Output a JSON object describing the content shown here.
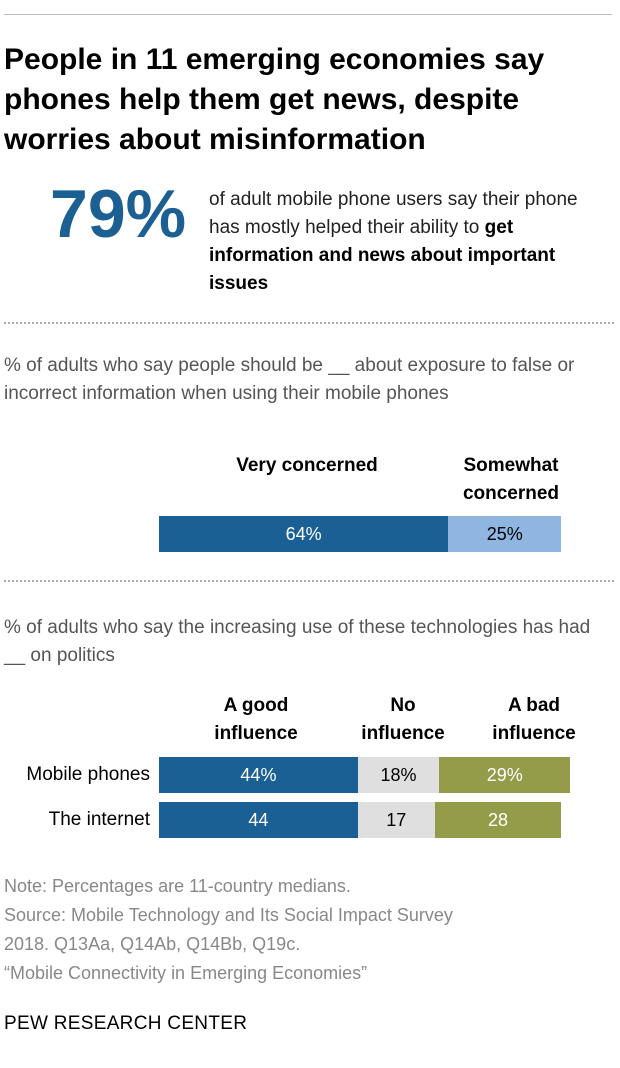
{
  "headline": "People in 11 emerging economies say phones help them get news, despite worries about misinformation",
  "callout": {
    "value": "79%",
    "desc_plain": "of adult mobile phone users say their phone has mostly helped their ability to ",
    "desc_bold": "get information and news about important issues"
  },
  "colors": {
    "very_concerned": "#1b6095",
    "somewhat_concerned": "#8fb6e0",
    "good_influence": "#1b6095",
    "no_influence": "#dfdfdf",
    "bad_influence": "#949c4a",
    "callout": "#1c5f93"
  },
  "chart_data": [
    {
      "type": "bar",
      "orientation": "horizontal-stacked",
      "question": "% of adults who say people should be __ about exposure to false or incorrect information when using their mobile phones",
      "categories": [
        ""
      ],
      "series": [
        {
          "name": "Very concerned",
          "values": [
            64
          ],
          "labels": [
            "64%"
          ]
        },
        {
          "name": "Somewhat concerned",
          "values": [
            25
          ],
          "labels": [
            "25%"
          ]
        }
      ],
      "xlim": [
        0,
        100
      ]
    },
    {
      "type": "bar",
      "orientation": "horizontal-stacked",
      "question": "% of adults who say the increasing use of these technologies has had __ on politics",
      "categories": [
        "Mobile phones",
        "The internet"
      ],
      "series": [
        {
          "name": "A good influence",
          "values": [
            44,
            44
          ],
          "labels": [
            "44%",
            "44"
          ]
        },
        {
          "name": "No influence",
          "values": [
            18,
            17
          ],
          "labels": [
            "18%",
            "17"
          ]
        },
        {
          "name": "A bad influence",
          "values": [
            29,
            28
          ],
          "labels": [
            "29%",
            "28"
          ]
        }
      ],
      "xlim": [
        0,
        100
      ]
    }
  ],
  "chart1_headers": [
    "Very concerned",
    "Somewhat concerned"
  ],
  "chart2_headers": [
    "A good influence",
    "No influence",
    "A bad influence"
  ],
  "note_lines": [
    "Note: Percentages are 11-country medians.",
    "Source: Mobile Technology and Its Social Impact Survey",
    "2018. Q13Aa, Q14Ab, Q14Bb, Q19c.",
    "“Mobile Connectivity in Emerging Economies”"
  ],
  "footer": "PEW RESEARCH CENTER"
}
